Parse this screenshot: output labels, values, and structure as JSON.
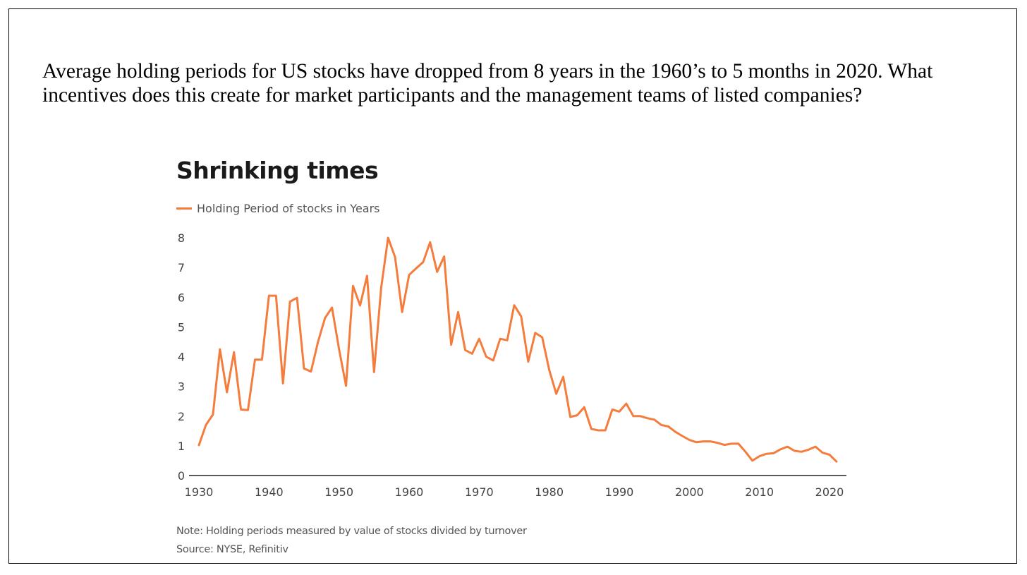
{
  "question": "Average holding periods for US stocks have dropped from 8 years in the 1960’s to 5 months in 2020. What incentives does this create for market participants and the management teams of listed companies?",
  "chart_data": {
    "type": "line",
    "title": "Shrinking times",
    "legend": [
      "Holding Period of stocks in Years"
    ],
    "legend_position": "top-left",
    "xlabel": "",
    "ylabel": "",
    "xlim": [
      1930,
      2021
    ],
    "ylim": [
      0,
      8
    ],
    "x_ticks": [
      "1930",
      "1940",
      "1950",
      "1960",
      "1970",
      "1980",
      "1990",
      "2000",
      "2010",
      "2020"
    ],
    "y_ticks": [
      "0",
      "1",
      "2",
      "3",
      "4",
      "5",
      "6",
      "7",
      "8"
    ],
    "grid": false,
    "color": "#f47c3c",
    "series": [
      {
        "name": "Holding Period of stocks in Years",
        "x": [
          1930,
          1931,
          1932,
          1933,
          1934,
          1935,
          1936,
          1937,
          1938,
          1939,
          1940,
          1941,
          1942,
          1943,
          1944,
          1945,
          1946,
          1947,
          1948,
          1949,
          1950,
          1951,
          1952,
          1953,
          1954,
          1955,
          1956,
          1957,
          1958,
          1959,
          1960,
          1961,
          1962,
          1963,
          1964,
          1965,
          1966,
          1967,
          1968,
          1969,
          1970,
          1971,
          1972,
          1973,
          1974,
          1975,
          1976,
          1977,
          1978,
          1979,
          1980,
          1981,
          1982,
          1983,
          1984,
          1985,
          1986,
          1987,
          1988,
          1989,
          1990,
          1991,
          1992,
          1993,
          1994,
          1995,
          1996,
          1997,
          1998,
          1999,
          2000,
          2001,
          2002,
          2003,
          2004,
          2005,
          2006,
          2007,
          2008,
          2009,
          2010,
          2011,
          2012,
          2013,
          2014,
          2015,
          2016,
          2017,
          2018,
          2019,
          2020,
          2021
        ],
        "values": [
          1.02,
          1.7,
          2.05,
          4.25,
          2.8,
          4.15,
          2.22,
          2.2,
          3.9,
          3.9,
          6.05,
          6.05,
          3.1,
          5.85,
          5.98,
          3.6,
          3.5,
          4.5,
          5.3,
          5.65,
          4.25,
          3.02,
          6.38,
          5.72,
          6.72,
          3.48,
          6.3,
          8.0,
          7.35,
          5.5,
          6.75,
          6.97,
          7.18,
          7.85,
          6.85,
          7.37,
          4.4,
          5.5,
          4.22,
          4.1,
          4.6,
          4.0,
          3.87,
          4.6,
          4.55,
          5.73,
          5.35,
          3.83,
          4.8,
          4.65,
          3.55,
          2.75,
          3.32,
          1.97,
          2.03,
          2.3,
          1.57,
          1.52,
          1.52,
          2.22,
          2.15,
          2.42,
          2.0,
          2.0,
          1.93,
          1.88,
          1.7,
          1.65,
          1.47,
          1.33,
          1.2,
          1.12,
          1.15,
          1.15,
          1.1,
          1.03,
          1.07,
          1.07,
          0.8,
          0.5,
          0.65,
          0.73,
          0.75,
          0.88,
          0.97,
          0.83,
          0.8,
          0.87,
          0.97,
          0.77,
          0.7,
          0.47
        ]
      }
    ],
    "notes": [
      "Note: Holding periods measured by value of stocks divided by turnover",
      "Source: NYSE, Refinitiv"
    ]
  }
}
